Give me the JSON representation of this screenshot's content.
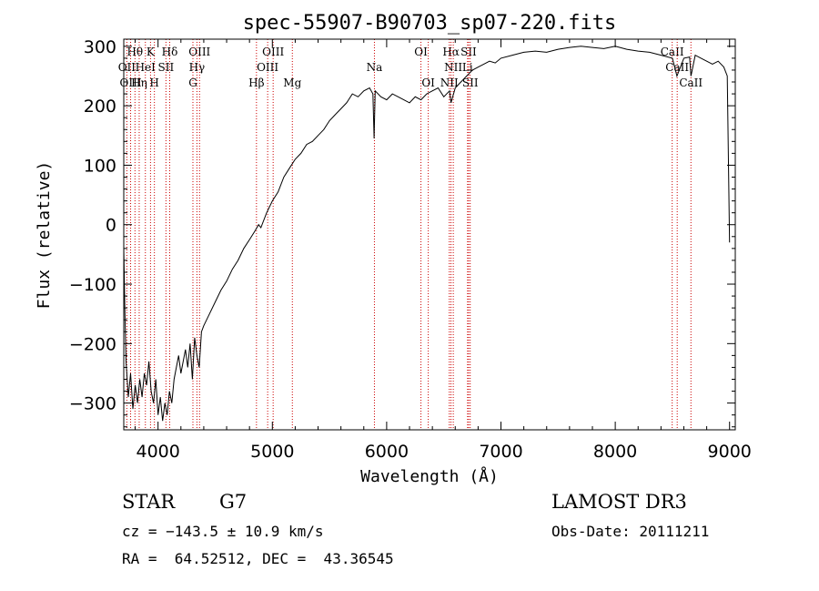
{
  "chart_data": {
    "type": "line",
    "title": "spec-55907-B90703_sp07-220.fits",
    "xlabel": "Wavelength (Å)",
    "ylabel": "Flux (relative)",
    "xlim": [
      3700,
      9050
    ],
    "ylim": [
      -345,
      312
    ],
    "x_ticks": [
      4000,
      5000,
      6000,
      7000,
      8000,
      9000
    ],
    "y_ticks": [
      -300,
      -200,
      -100,
      0,
      100,
      200,
      300
    ],
    "grid": false,
    "series": [
      {
        "x": [
          3700,
          3710,
          3720,
          3740,
          3760,
          3780,
          3800,
          3820,
          3840,
          3860,
          3880,
          3900,
          3920,
          3940,
          3960,
          3980,
          4000,
          4020,
          4040,
          4060,
          4080,
          4100,
          4120,
          4140,
          4160,
          4180,
          4200,
          4220,
          4240,
          4260,
          4280,
          4300,
          4320,
          4340,
          4360,
          4380,
          4400,
          4450,
          4500,
          4550,
          4600,
          4650,
          4700,
          4750,
          4800,
          4850,
          4880,
          4900,
          4950,
          5000,
          5050,
          5100,
          5150,
          5200,
          5250,
          5300,
          5350,
          5400,
          5450,
          5500,
          5550,
          5600,
          5650,
          5700,
          5750,
          5800,
          5850,
          5880,
          5890,
          5900,
          5950,
          6000,
          6050,
          6100,
          6150,
          6200,
          6250,
          6300,
          6350,
          6400,
          6450,
          6500,
          6550,
          6563,
          6600,
          6650,
          6700,
          6750,
          6800,
          6850,
          6900,
          6950,
          7000,
          7100,
          7200,
          7300,
          7400,
          7500,
          7600,
          7700,
          7800,
          7900,
          8000,
          8100,
          8200,
          8300,
          8400,
          8500,
          8540,
          8600,
          8650,
          8662,
          8700,
          8750,
          8800,
          8850,
          8900,
          8950,
          8980,
          9000
        ],
        "y": [
          -40,
          -150,
          -230,
          -290,
          -250,
          -310,
          -270,
          -300,
          -260,
          -290,
          -250,
          -270,
          -230,
          -280,
          -300,
          -260,
          -320,
          -290,
          -330,
          -300,
          -320,
          -280,
          -300,
          -260,
          -240,
          -220,
          -250,
          -230,
          -210,
          -240,
          -200,
          -260,
          -190,
          -220,
          -240,
          -180,
          -170,
          -150,
          -130,
          -110,
          -95,
          -75,
          -60,
          -40,
          -25,
          -10,
          0,
          -5,
          20,
          40,
          55,
          80,
          95,
          110,
          120,
          135,
          140,
          150,
          160,
          175,
          185,
          195,
          205,
          220,
          215,
          225,
          230,
          220,
          145,
          225,
          215,
          210,
          220,
          215,
          210,
          205,
          215,
          210,
          220,
          225,
          230,
          215,
          225,
          205,
          230,
          240,
          250,
          260,
          265,
          270,
          275,
          272,
          280,
          285,
          290,
          292,
          290,
          295,
          298,
          300,
          298,
          296,
          300,
          295,
          292,
          290,
          285,
          280,
          250,
          280,
          282,
          250,
          285,
          280,
          275,
          270,
          275,
          265,
          250,
          -30
        ]
      }
    ],
    "lines": [
      {
        "label": "Hθ",
        "x": 3798,
        "row": 0
      },
      {
        "label": "K",
        "x": 3934,
        "row": 0
      },
      {
        "label": "Hδ",
        "x": 4102,
        "row": 0
      },
      {
        "label": "OIII",
        "x": 4363,
        "row": 0
      },
      {
        "label": "OIII",
        "x": 5007,
        "row": 0
      },
      {
        "label": "OI",
        "x": 6300,
        "row": 0
      },
      {
        "label": "Hα",
        "x": 6563,
        "row": 0
      },
      {
        "label": "SII",
        "x": 6717,
        "row": 0
      },
      {
        "label": "CaII",
        "x": 8498,
        "row": 0
      },
      {
        "label": "OII",
        "x": 3727,
        "row": 1
      },
      {
        "label": "HeI",
        "x": 3889,
        "row": 1
      },
      {
        "label": "SII",
        "x": 4069,
        "row": 1
      },
      {
        "label": "Hγ",
        "x": 4340,
        "row": 1
      },
      {
        "label": "OIII",
        "x": 4959,
        "row": 1
      },
      {
        "label": "Na",
        "x": 5893,
        "row": 1
      },
      {
        "label": "NII",
        "x": 6583,
        "row": 1
      },
      {
        "label": "Li",
        "x": 6708,
        "row": 1
      },
      {
        "label": "CaII",
        "x": 8542,
        "row": 1
      },
      {
        "label": "OIII",
        "x": 3760,
        "row": 2
      },
      {
        "label": "Hη",
        "x": 3835,
        "row": 2
      },
      {
        "label": "H",
        "x": 3968,
        "row": 2
      },
      {
        "label": "G",
        "x": 4305,
        "row": 2
      },
      {
        "label": "Hβ",
        "x": 4861,
        "row": 2
      },
      {
        "label": "Mg",
        "x": 5175,
        "row": 2
      },
      {
        "label": "OI",
        "x": 6364,
        "row": 2
      },
      {
        "label": "NII",
        "x": 6548,
        "row": 2
      },
      {
        "label": "SII",
        "x": 6731,
        "row": 2
      },
      {
        "label": "CaII",
        "x": 8662,
        "row": 2
      }
    ]
  },
  "info": {
    "class": "STAR",
    "subclass": "G7",
    "survey": "LAMOST DR3",
    "cz": "cz = −143.5 ± 10.9 km/s",
    "obs_date": "Obs-Date: 20111211",
    "radec": "RA =  64.52512, DEC =  43.36545"
  },
  "colors": {
    "line_marker": "#cc0000",
    "spectrum": "#000000"
  }
}
